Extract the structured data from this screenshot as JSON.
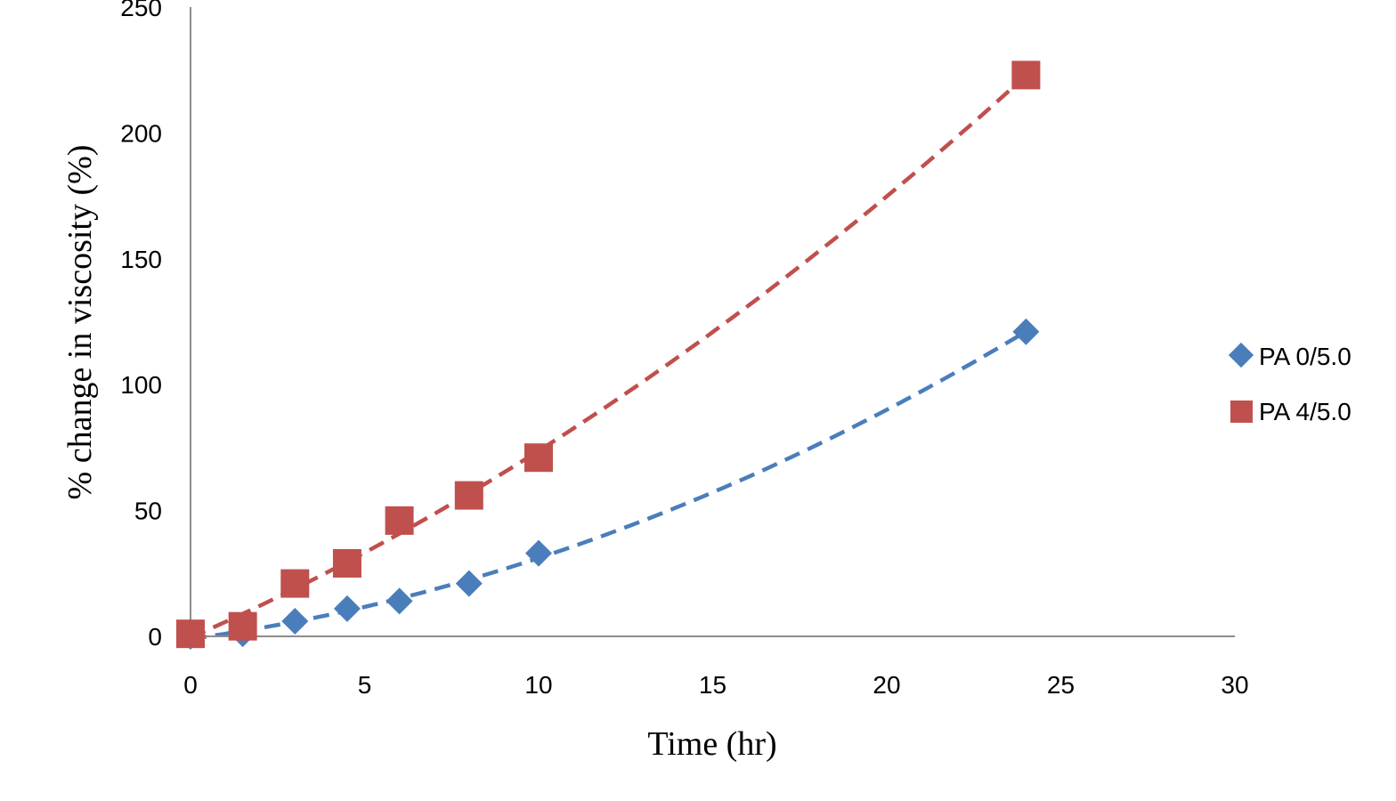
{
  "chart_data": {
    "type": "scatter",
    "xlabel": "Time (hr)",
    "ylabel": "% change in viscosity (%)",
    "xlim": [
      0,
      30
    ],
    "ylim": [
      0,
      250
    ],
    "xticks": [
      0,
      5,
      10,
      15,
      20,
      25,
      30
    ],
    "yticks": [
      0,
      50,
      100,
      150,
      200,
      250
    ],
    "grid": false,
    "legend_position": "right",
    "series": [
      {
        "name": "PA 0/5.0",
        "marker": "diamond",
        "color": "#4a7ebb",
        "trendline": "polynomial (dashed)",
        "x": [
          0,
          1.5,
          3,
          4.5,
          6,
          8,
          10,
          24
        ],
        "y": [
          0,
          1,
          6,
          11,
          14,
          21,
          33,
          121
        ]
      },
      {
        "name": "PA 4/5.0",
        "marker": "square",
        "color": "#c0504d",
        "trendline": "polynomial (dashed)",
        "x": [
          0,
          1.5,
          3,
          4.5,
          6,
          8,
          10,
          24
        ],
        "y": [
          1,
          4,
          21,
          29,
          46,
          56,
          71,
          223
        ]
      }
    ]
  }
}
